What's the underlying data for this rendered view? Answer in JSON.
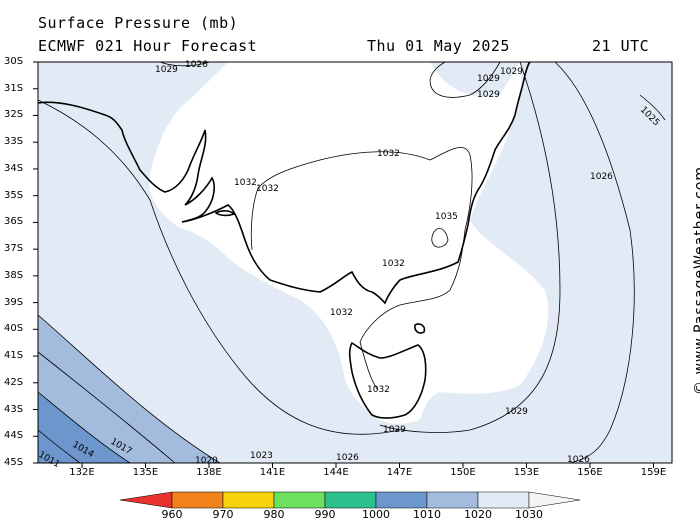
{
  "header": {
    "title": "Surface Pressure (mb)",
    "model": "ECMWF 021 Hour Forecast",
    "date": "Thu 01 May 2025",
    "time": "21 UTC"
  },
  "credit": "© www.PassageWeather.com",
  "lat_labels": [
    "30S",
    "31S",
    "32S",
    "33S",
    "34S",
    "35S",
    "36S",
    "37S",
    "38S",
    "39S",
    "40S",
    "41S",
    "42S",
    "43S",
    "44S",
    "45S"
  ],
  "lon_labels": [
    "132E",
    "135E",
    "138E",
    "141E",
    "144E",
    "147E",
    "150E",
    "153E",
    "156E",
    "159E"
  ],
  "isobar_labels": [
    "1029",
    "1026",
    "1029",
    "1029",
    "1029",
    "1025",
    "1032",
    "1032",
    "1032",
    "1026",
    "1035",
    "1032",
    "1032",
    "1032",
    "1029",
    "1026",
    "1029",
    "1026",
    "1023",
    "1020",
    "1017",
    "1014",
    "1011"
  ],
  "colorbar": {
    "labels": [
      "960",
      "970",
      "980",
      "990",
      "1000",
      "1010",
      "1020",
      "1030"
    ],
    "colors": [
      "#e8322b",
      "#f2821b",
      "#f5d20c",
      "#6ee060",
      "#2ec08c",
      "#6c96cc",
      "#a3bcdd",
      "#e2eaf5",
      "#f4f4f4"
    ]
  },
  "map_colors": {
    "p1030": "#e2eaf5",
    "p1020": "#a3bcdd",
    "p1010": "#6c96cc",
    "high": "#ffffff",
    "land_outline": "#000000"
  }
}
